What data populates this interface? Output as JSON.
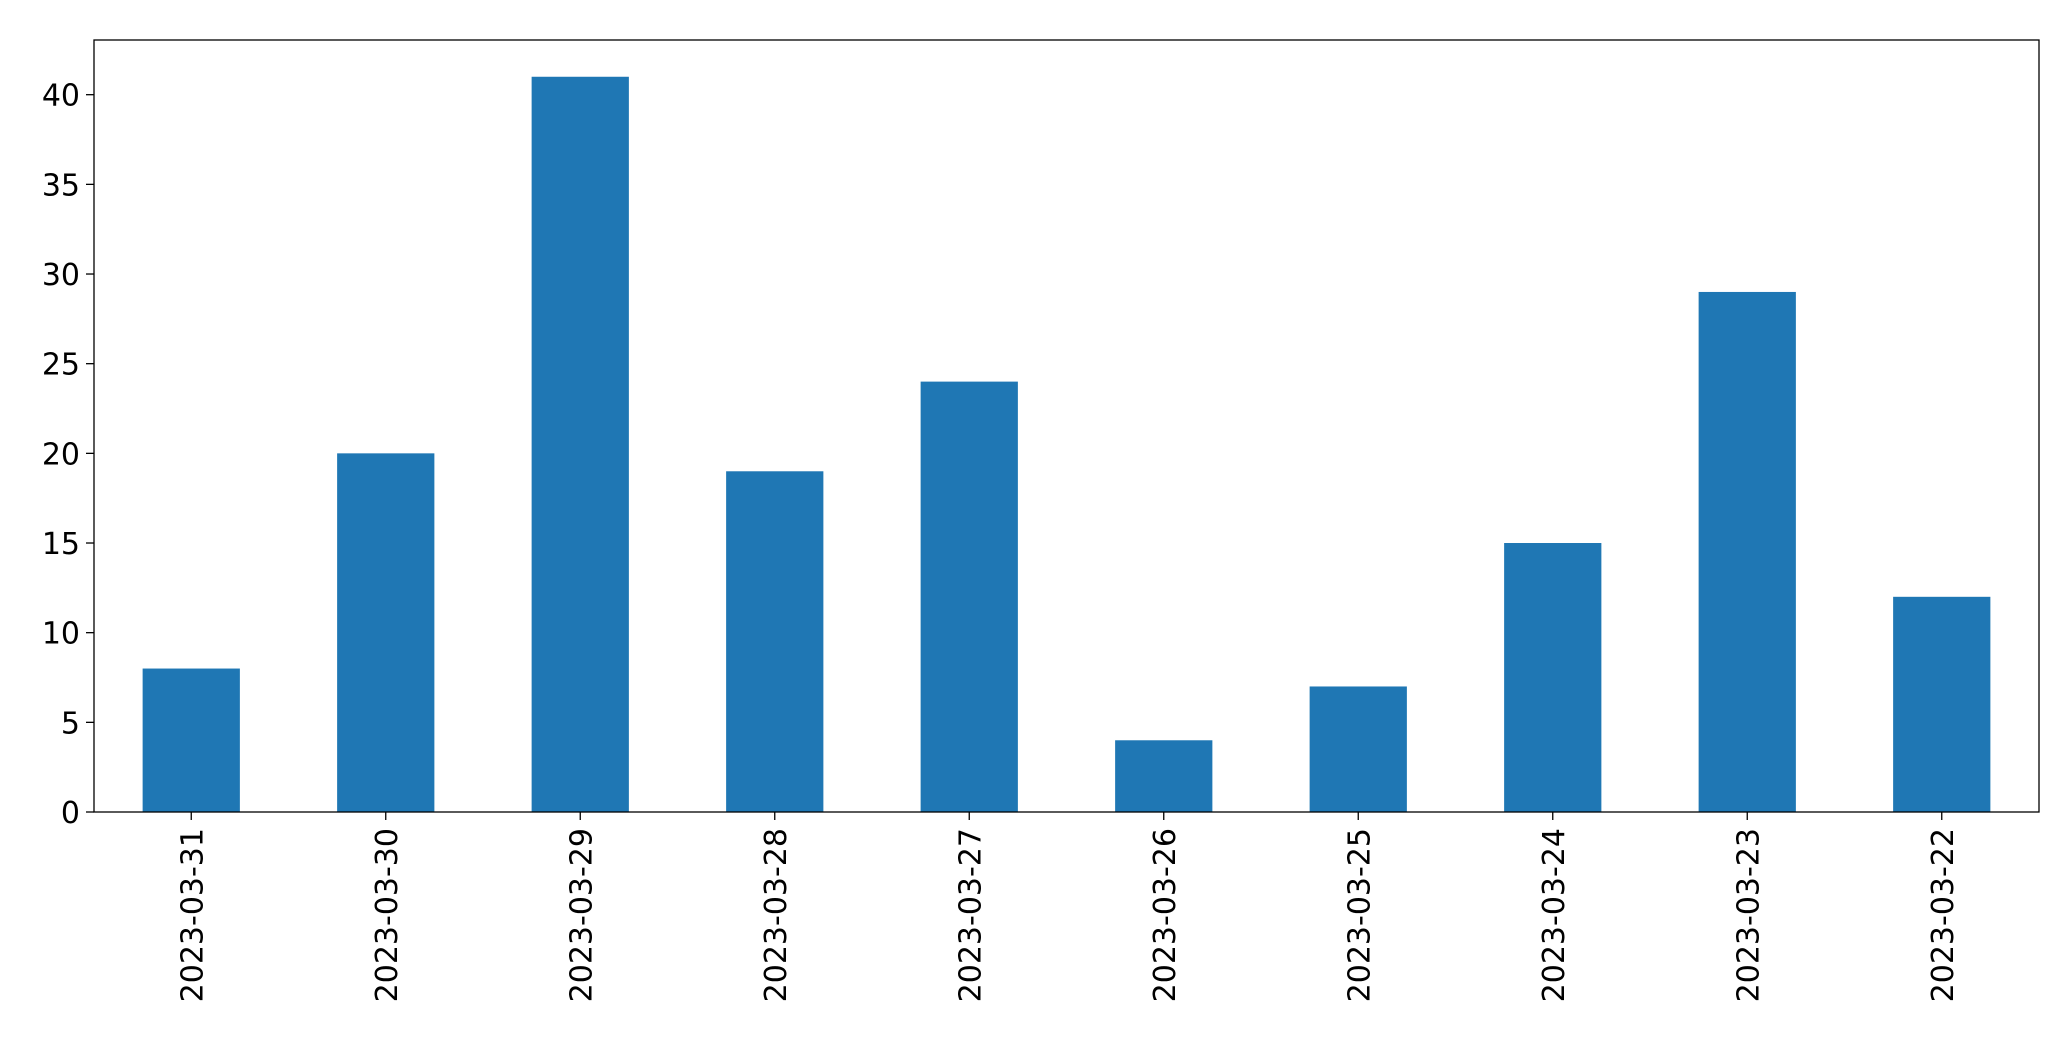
{
  "chart_data": {
    "type": "bar",
    "categories": [
      "2023-03-31",
      "2023-03-30",
      "2023-03-29",
      "2023-03-28",
      "2023-03-27",
      "2023-03-26",
      "2023-03-25",
      "2023-03-24",
      "2023-03-23",
      "2023-03-22"
    ],
    "values": [
      8,
      20,
      41,
      19,
      24,
      4,
      7,
      15,
      29,
      12
    ],
    "color": "#1f77b4",
    "ylim": [
      0,
      43.05
    ],
    "yticks": [
      0,
      5,
      10,
      15,
      20,
      25,
      30,
      35,
      40
    ],
    "grid": false
  }
}
